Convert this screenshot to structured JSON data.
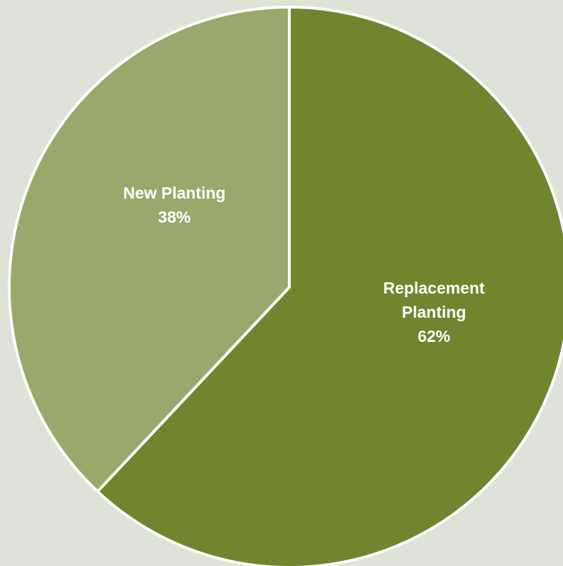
{
  "chart_data": {
    "type": "pie",
    "categories": [
      "Replacement Planting",
      "New Planting"
    ],
    "values": [
      62,
      38
    ],
    "unit": "%",
    "slices": [
      {
        "name": "Replacement Planting",
        "value": 62,
        "label_lines": [
          "Replacement",
          "Planting",
          "62%"
        ],
        "color": "#6f862f"
      },
      {
        "name": "New Planting",
        "value": 38,
        "label_lines": [
          "New Planting",
          "38%"
        ],
        "color": "#9aa96b"
      }
    ],
    "start_angle_deg": 0,
    "direction": "clockwise",
    "background_color": "#dfe2d6",
    "edge_color": "#ffffff"
  }
}
